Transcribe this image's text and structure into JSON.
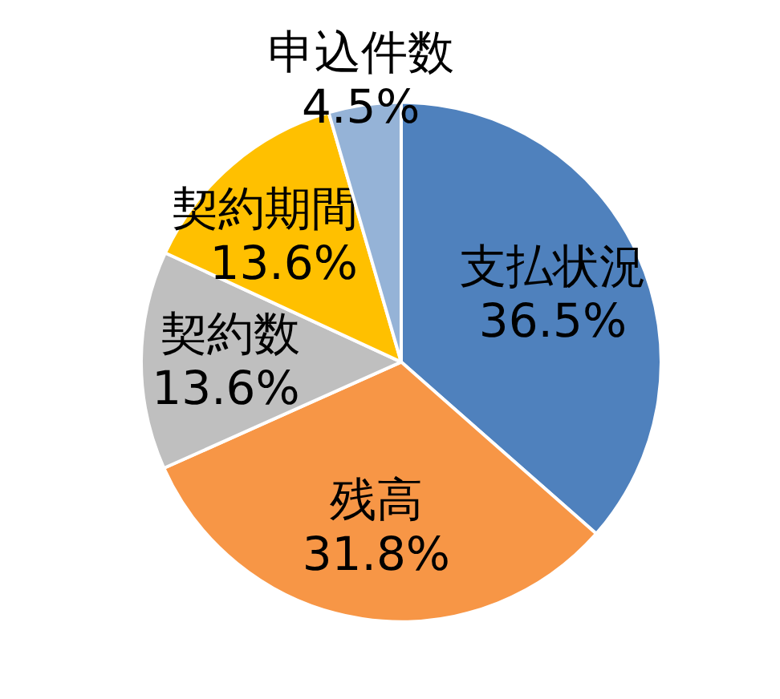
{
  "chart_data": {
    "type": "pie",
    "categories": [
      "支払状況",
      "残高",
      "契約数",
      "契約期間",
      "申込件数"
    ],
    "values": [
      36.5,
      31.8,
      13.6,
      13.6,
      4.5
    ],
    "colors": [
      "#4f81bd",
      "#f79646",
      "#bfbfbf",
      "#ffc000",
      "#95b3d7"
    ],
    "value_labels": [
      "36.5%",
      "31.8%",
      "13.6%",
      "13.6%",
      "4.5%"
    ]
  }
}
